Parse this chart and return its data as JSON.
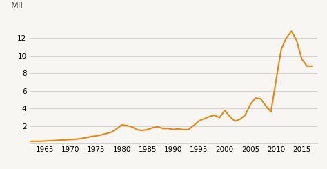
{
  "years": [
    1962,
    1963,
    1964,
    1965,
    1966,
    1967,
    1968,
    1969,
    1970,
    1971,
    1972,
    1973,
    1974,
    1975,
    1976,
    1977,
    1978,
    1979,
    1980,
    1981,
    1982,
    1983,
    1984,
    1985,
    1986,
    1987,
    1988,
    1989,
    1990,
    1991,
    1992,
    1993,
    1994,
    1995,
    1996,
    1997,
    1998,
    1999,
    2000,
    2001,
    2002,
    2003,
    2004,
    2005,
    2006,
    2007,
    2008,
    2009,
    2010,
    2011,
    2012,
    2013,
    2014,
    2015,
    2016,
    2017
  ],
  "values": [
    0.27,
    0.27,
    0.27,
    0.3,
    0.33,
    0.36,
    0.4,
    0.43,
    0.46,
    0.5,
    0.58,
    0.68,
    0.8,
    0.88,
    1.0,
    1.15,
    1.32,
    1.7,
    2.12,
    2.05,
    1.9,
    1.58,
    1.5,
    1.6,
    1.82,
    1.92,
    1.72,
    1.72,
    1.62,
    1.68,
    1.58,
    1.62,
    2.08,
    2.58,
    2.82,
    3.08,
    3.22,
    2.95,
    3.78,
    3.08,
    2.55,
    2.78,
    3.25,
    4.45,
    5.18,
    5.08,
    4.28,
    3.62,
    7.2,
    10.7,
    12.0,
    12.75,
    11.7,
    9.6,
    8.8,
    8.8
  ],
  "xlim": [
    1962,
    2018
  ],
  "ylim": [
    0,
    14
  ],
  "yticks": [
    2,
    4,
    6,
    8,
    10,
    12
  ],
  "xticks": [
    1965,
    1970,
    1975,
    1980,
    1985,
    1990,
    1995,
    2000,
    2005,
    2010,
    2015
  ],
  "ylabel": "MII",
  "line_color": "#E8870A",
  "line_width": 1.5,
  "bg_color": "#F7F6F2",
  "grid_color": "#CCCCCC",
  "tick_label_fontsize": 7.5,
  "ylabel_fontsize": 9
}
